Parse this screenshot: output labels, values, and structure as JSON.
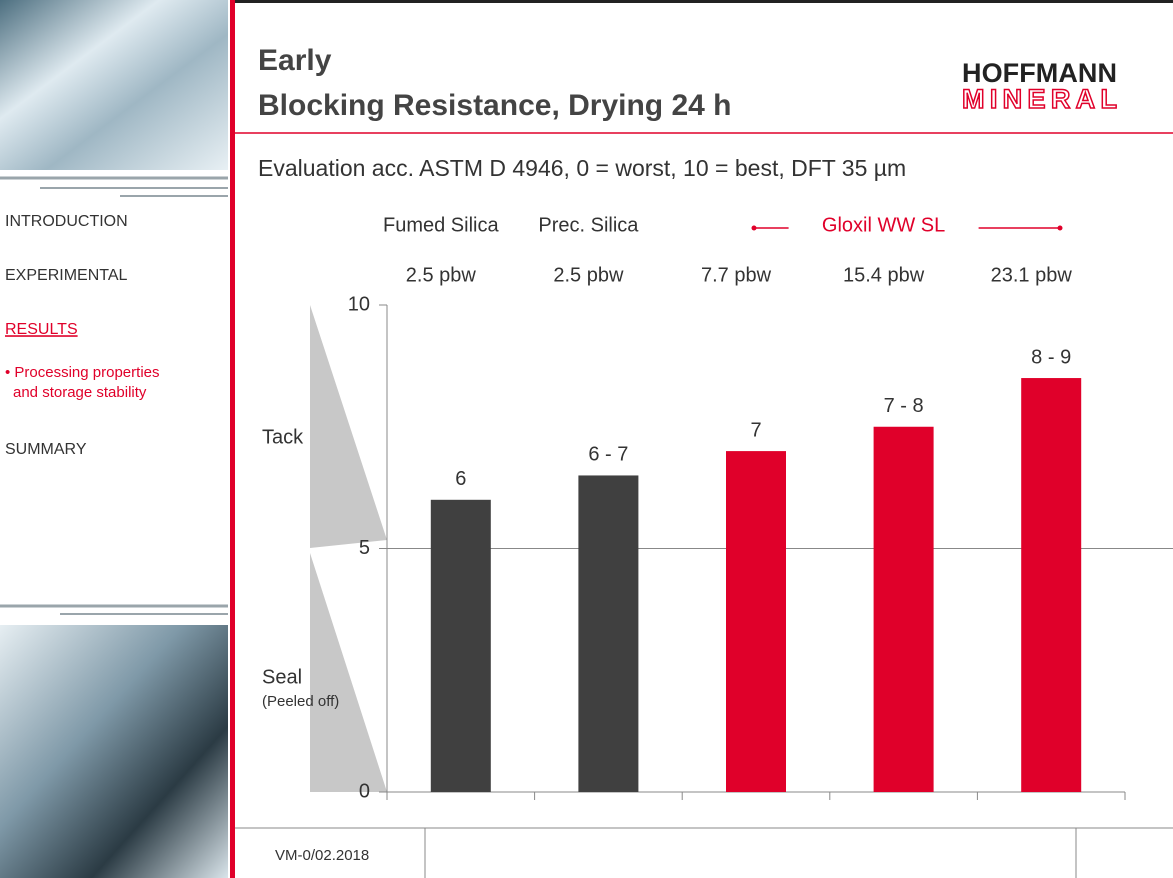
{
  "header": {
    "title_lines": [
      "Early",
      "Blocking Resistance, Drying 24 h"
    ],
    "logo_lines": [
      "HOFFMANN",
      "MINERAL"
    ]
  },
  "subtitle": "Evaluation acc. ASTM D 4946, 0 = worst, 10 = best, DFT 35 µm",
  "nav": [
    {
      "lines": [
        "INTRODUCTION"
      ]
    },
    {
      "lines": [
        "EXPERIMENTAL"
      ]
    },
    {
      "lines": [
        "RESULTS"
      ]
    },
    {
      "lines": [
        "• Processing properties",
        "and storage stability"
      ]
    },
    {
      "lines": [
        "SUMMARY"
      ]
    }
  ],
  "footer": {
    "code": "VM-0/02.2018"
  },
  "chart_data": {
    "type": "bar",
    "category_groups": [
      "Fumed Silica",
      "Prec. Silica",
      "Gloxil WW SL"
    ],
    "categories": [
      "2.5 pbw",
      "2.5 pbw",
      "7.7 pbw",
      "15.4 pbw",
      "23.1 pbw"
    ],
    "values": [
      6,
      6.5,
      7,
      7.5,
      8.5
    ],
    "value_labels": [
      "6",
      "6 - 7",
      "7",
      "7 - 8",
      "8 - 9"
    ],
    "colors": [
      "#404040",
      "#404040",
      "#e0002a",
      "#e0002a",
      "#e0002a"
    ],
    "ylim": [
      0,
      10
    ],
    "yticks": [
      0,
      5,
      10
    ],
    "grid": true,
    "annotations": [
      "Tack",
      "Seal",
      "(Peeled off)"
    ]
  }
}
